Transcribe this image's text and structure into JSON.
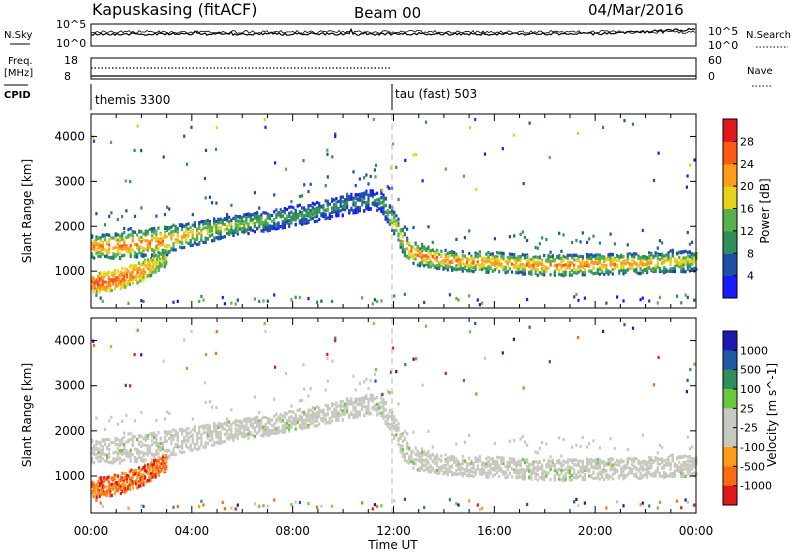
{
  "header": {
    "station": "Kapuskasing (fitACF)",
    "beam": "Beam 00",
    "date": "04/Mar/2016"
  },
  "noise_panel": {
    "left_label": "N.Sky",
    "right_label": "N.Search",
    "left_ticks": [
      "10^5",
      "10^0"
    ],
    "right_ticks": [
      "10^5",
      "10^0"
    ]
  },
  "freq_panel": {
    "left_label_1": "Freq.",
    "left_label_2": "[MHz]",
    "left_ticks": [
      "18",
      "8"
    ],
    "right_label": "Nave",
    "right_ticks": [
      "60",
      "0"
    ]
  },
  "cpid_panel": {
    "label": "CPID",
    "programs": [
      {
        "name": "themis 3300",
        "start_hour": 0
      },
      {
        "name": "tau (fast) 503",
        "start_hour": 12
      }
    ]
  },
  "colors": {
    "power_scale": [
      "#1a1aff",
      "#1e4fa8",
      "#2e8f5a",
      "#5ab04a",
      "#e6d21a",
      "#ff9a1a",
      "#ff5a14",
      "#e01a1a"
    ],
    "velocity_scale": [
      "#1a1ab0",
      "#1e5aa8",
      "#2e8f5a",
      "#6cc83c",
      "#c8c8c0",
      "#c8c8c0",
      "#ff9a1a",
      "#ff6a14",
      "#e01a1a"
    ],
    "ground_scatter": "#c8c8c0"
  },
  "chart_data": [
    {
      "type": "heatmap",
      "title": "",
      "xlabel": "Time UT",
      "ylabel": "Slant Range [km]",
      "x_ticks": [
        "00:00",
        "04:00",
        "08:00",
        "12:00",
        "16:00",
        "20:00",
        "00:00"
      ],
      "x_range_hours": [
        0,
        24
      ],
      "y_ticks": [
        1000,
        2000,
        3000,
        4000
      ],
      "ylim": [
        180,
        4500
      ],
      "colorbar": {
        "label": "Power [dB]",
        "ticks": [
          4,
          8,
          12,
          16,
          20,
          24,
          28
        ],
        "range": [
          0,
          32
        ]
      },
      "echo_band": {
        "hours": [
          0,
          1,
          2,
          3,
          4,
          5,
          6,
          7,
          8,
          9,
          10,
          11,
          11.5,
          12,
          12.5,
          13,
          14,
          15,
          16,
          17,
          18,
          19,
          20,
          21,
          22,
          23,
          24
        ],
        "center_km": [
          1550,
          1560,
          1620,
          1680,
          1820,
          1950,
          2040,
          2120,
          2220,
          2340,
          2460,
          2580,
          2560,
          2050,
          1500,
          1340,
          1250,
          1200,
          1190,
          1160,
          1120,
          1130,
          1150,
          1160,
          1180,
          1200,
          1230
        ],
        "width_km": [
          260,
          280,
          300,
          320,
          260,
          240,
          220,
          220,
          220,
          220,
          220,
          220,
          240,
          300,
          260,
          240,
          220,
          220,
          220,
          220,
          230,
          230,
          230,
          230,
          230,
          230,
          230
        ],
        "peak_power_db": [
          26,
          27,
          26,
          24,
          20,
          18,
          16,
          14,
          12,
          11,
          10,
          9,
          10,
          18,
          24,
          26,
          26,
          25,
          24,
          24,
          25,
          25,
          24,
          24,
          22,
          20,
          18
        ]
      },
      "secondary_echo": {
        "hours": [
          0,
          0.5,
          1,
          1.5,
          2,
          2.5,
          3
        ],
        "center_km": [
          720,
          760,
          820,
          900,
          1000,
          1150,
          1300
        ],
        "width_km": [
          200,
          220,
          240,
          240,
          220,
          200,
          180
        ],
        "peak_power_db": [
          28,
          28,
          27,
          26,
          24,
          20,
          16
        ]
      }
    },
    {
      "type": "heatmap",
      "title": "",
      "xlabel": "Time UT",
      "ylabel": "Slant Range [km]",
      "x_ticks": [
        "00:00",
        "04:00",
        "08:00",
        "12:00",
        "16:00",
        "20:00",
        "00:00"
      ],
      "x_range_hours": [
        0,
        24
      ],
      "y_ticks": [
        1000,
        2000,
        3000,
        4000
      ],
      "ylim": [
        180,
        4500
      ],
      "colorbar": {
        "label": "Velocity [m s^-1]",
        "ticks": [
          1000,
          500,
          100,
          25,
          -25,
          -100,
          -500,
          -1000
        ]
      },
      "note": "Most echoes flagged as ground scatter (grey); early-UT near-range echoes show -100 to -1000 m/s."
    }
  ]
}
